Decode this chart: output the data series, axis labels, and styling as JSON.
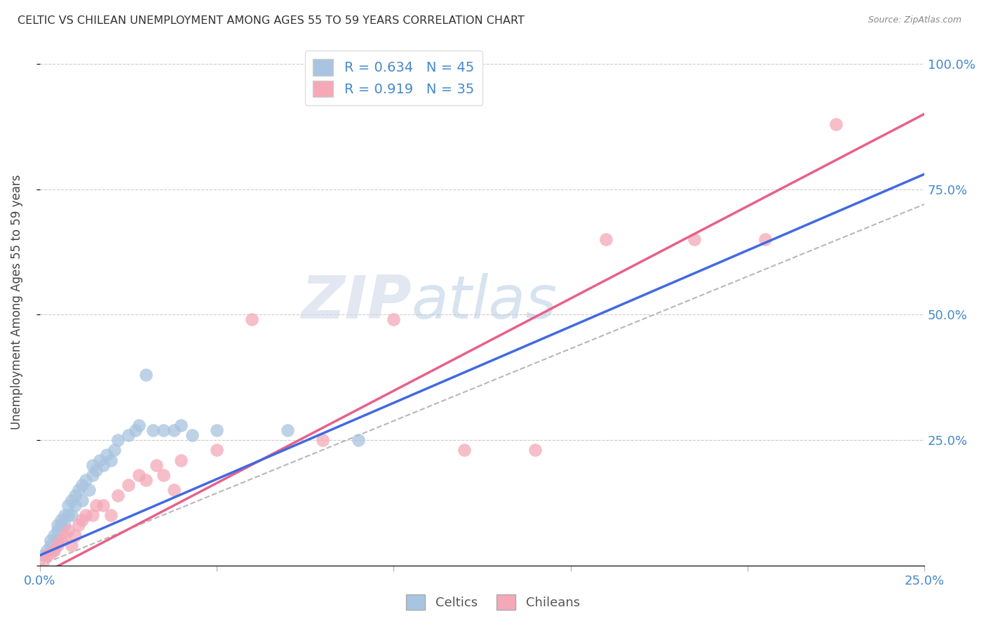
{
  "title": "CELTIC VS CHILEAN UNEMPLOYMENT AMONG AGES 55 TO 59 YEARS CORRELATION CHART",
  "source": "Source: ZipAtlas.com",
  "ylabel": "Unemployment Among Ages 55 to 59 years",
  "xlim": [
    0.0,
    0.25
  ],
  "ylim": [
    0.0,
    1.05
  ],
  "x_ticks": [
    0.0,
    0.05,
    0.1,
    0.15,
    0.2,
    0.25
  ],
  "x_tick_labels": [
    "0.0%",
    "",
    "",
    "",
    "",
    "25.0%"
  ],
  "y_ticks": [
    0.0,
    0.25,
    0.5,
    0.75,
    1.0
  ],
  "y_tick_labels": [
    "",
    "25.0%",
    "50.0%",
    "75.0%",
    "100.0%"
  ],
  "celtics_color": "#a8c4e0",
  "chileans_color": "#f4a8b8",
  "celtics_R": 0.634,
  "celtics_N": 45,
  "chileans_R": 0.919,
  "chileans_N": 35,
  "celtics_line_color": "#4169e1",
  "chileans_line_color": "#e8608a",
  "trend_line_color": "#b8b8b8",
  "watermark": "ZIPatlas",
  "celtics_line": [
    0.0,
    0.02,
    0.25,
    0.78
  ],
  "chileans_line": [
    0.0,
    -0.02,
    0.25,
    0.9
  ],
  "combined_line": [
    0.0,
    0.0,
    0.25,
    0.72
  ],
  "celtics_points_x": [
    0.001,
    0.002,
    0.003,
    0.003,
    0.004,
    0.004,
    0.005,
    0.005,
    0.005,
    0.006,
    0.006,
    0.007,
    0.007,
    0.008,
    0.008,
    0.009,
    0.009,
    0.01,
    0.01,
    0.011,
    0.012,
    0.012,
    0.013,
    0.014,
    0.015,
    0.015,
    0.016,
    0.017,
    0.018,
    0.019,
    0.02,
    0.021,
    0.022,
    0.025,
    0.027,
    0.028,
    0.03,
    0.032,
    0.035,
    0.038,
    0.04,
    0.043,
    0.05,
    0.07,
    0.09
  ],
  "celtics_points_y": [
    0.02,
    0.03,
    0.04,
    0.05,
    0.03,
    0.06,
    0.07,
    0.08,
    0.05,
    0.08,
    0.09,
    0.1,
    0.08,
    0.1,
    0.12,
    0.1,
    0.13,
    0.12,
    0.14,
    0.15,
    0.13,
    0.16,
    0.17,
    0.15,
    0.18,
    0.2,
    0.19,
    0.21,
    0.2,
    0.22,
    0.21,
    0.23,
    0.25,
    0.26,
    0.27,
    0.28,
    0.38,
    0.27,
    0.27,
    0.27,
    0.28,
    0.26,
    0.27,
    0.27,
    0.25
  ],
  "chileans_points_x": [
    0.001,
    0.002,
    0.003,
    0.004,
    0.005,
    0.006,
    0.007,
    0.008,
    0.009,
    0.01,
    0.011,
    0.012,
    0.013,
    0.015,
    0.016,
    0.018,
    0.02,
    0.022,
    0.025,
    0.028,
    0.03,
    0.033,
    0.035,
    0.038,
    0.04,
    0.05,
    0.06,
    0.08,
    0.1,
    0.12,
    0.14,
    0.16,
    0.185,
    0.205,
    0.225
  ],
  "chileans_points_y": [
    0.01,
    0.02,
    0.025,
    0.03,
    0.04,
    0.05,
    0.06,
    0.07,
    0.04,
    0.06,
    0.08,
    0.09,
    0.1,
    0.1,
    0.12,
    0.12,
    0.1,
    0.14,
    0.16,
    0.18,
    0.17,
    0.2,
    0.18,
    0.15,
    0.21,
    0.23,
    0.49,
    0.25,
    0.49,
    0.23,
    0.23,
    0.65,
    0.65,
    0.65,
    0.88
  ]
}
